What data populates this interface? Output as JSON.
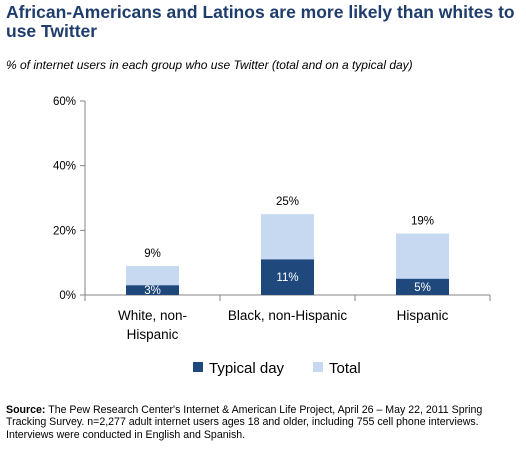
{
  "title": "African-Americans and Latinos are more likely than whites to use Twitter",
  "subtitle": "% of internet users in each group who use Twitter (total and on a typical day)",
  "source": {
    "label": "Source:",
    "text": "The Pew Research Center's Internet & American Life Project, April 26 – May 22, 2011 Spring Tracking Survey. n=2,277 adult internet users ages 18 and older, including 755 cell phone interviews. Interviews were conducted in English and Spanish."
  },
  "chart_data": {
    "type": "bar",
    "stacked": "overlay",
    "categories": [
      "White, non-Hispanic",
      "Black, non-Hispanic",
      "Hispanic"
    ],
    "category_lines": [
      [
        "White, non-",
        "Hispanic"
      ],
      [
        "Black, non-Hispanic"
      ],
      [
        "Hispanic"
      ]
    ],
    "series": [
      {
        "name": "Typical day",
        "values": [
          3,
          11,
          5
        ],
        "labels": [
          "3%",
          "11%",
          "5%"
        ],
        "color": "#1f497d",
        "label_color": "#ffffff"
      },
      {
        "name": "Total",
        "values": [
          9,
          25,
          19
        ],
        "labels": [
          "9%",
          "25%",
          "19%"
        ],
        "color": "#c6d9f1",
        "label_color": "#000000"
      }
    ],
    "ylim": [
      0,
      60
    ],
    "yticks": [
      0,
      20,
      40,
      60
    ],
    "ytick_labels": [
      "0%",
      "20%",
      "40%",
      "60%"
    ],
    "grid": false,
    "legend": "bottom-center"
  }
}
